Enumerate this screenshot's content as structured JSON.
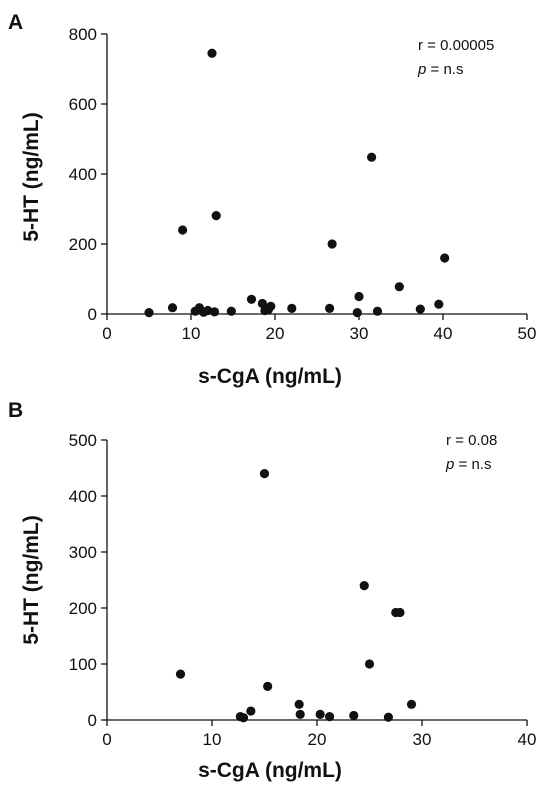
{
  "chart_data": [
    {
      "type": "scatter",
      "panel_label": "A",
      "xlabel": "s-CgA (ng/mL)",
      "ylabel": "5-HT (ng/mL)",
      "xlim": [
        0,
        50
      ],
      "ylim": [
        0,
        800
      ],
      "xticks": [
        0,
        10,
        20,
        30,
        40,
        50
      ],
      "yticks": [
        0,
        200,
        400,
        600,
        800
      ],
      "grid": false,
      "annotation": {
        "r_text": "r = 0.00005",
        "p_symbol": "p",
        "p_text": " = n.s"
      },
      "points": [
        {
          "x": 12.5,
          "y": 745
        },
        {
          "x": 31.5,
          "y": 448
        },
        {
          "x": 13.0,
          "y": 281
        },
        {
          "x": 9.0,
          "y": 240
        },
        {
          "x": 26.8,
          "y": 200
        },
        {
          "x": 40.2,
          "y": 160
        },
        {
          "x": 34.8,
          "y": 78
        },
        {
          "x": 30.0,
          "y": 50
        },
        {
          "x": 17.2,
          "y": 42
        },
        {
          "x": 39.5,
          "y": 28
        },
        {
          "x": 18.5,
          "y": 30
        },
        {
          "x": 19.5,
          "y": 22
        },
        {
          "x": 7.8,
          "y": 18
        },
        {
          "x": 11.0,
          "y": 18
        },
        {
          "x": 22.0,
          "y": 16
        },
        {
          "x": 26.5,
          "y": 16
        },
        {
          "x": 37.3,
          "y": 14
        },
        {
          "x": 19.2,
          "y": 12
        },
        {
          "x": 18.8,
          "y": 10
        },
        {
          "x": 12.0,
          "y": 10
        },
        {
          "x": 10.5,
          "y": 8
        },
        {
          "x": 14.8,
          "y": 8
        },
        {
          "x": 12.8,
          "y": 6
        },
        {
          "x": 32.2,
          "y": 8
        },
        {
          "x": 11.5,
          "y": 5
        },
        {
          "x": 5.0,
          "y": 4
        },
        {
          "x": 29.8,
          "y": 4
        }
      ]
    },
    {
      "type": "scatter",
      "panel_label": "B",
      "xlabel": "s-CgA (ng/mL)",
      "ylabel": "5-HT (ng/mL)",
      "xlim": [
        0,
        40
      ],
      "ylim": [
        0,
        500
      ],
      "xticks": [
        0,
        10,
        20,
        30,
        40
      ],
      "yticks": [
        0,
        100,
        200,
        300,
        400,
        500
      ],
      "grid": false,
      "annotation": {
        "r_text": "r = 0.08",
        "p_symbol": "p",
        "p_text": " = n.s"
      },
      "points": [
        {
          "x": 15.0,
          "y": 440
        },
        {
          "x": 24.5,
          "y": 240
        },
        {
          "x": 27.5,
          "y": 192
        },
        {
          "x": 27.9,
          "y": 192
        },
        {
          "x": 25.0,
          "y": 100
        },
        {
          "x": 7.0,
          "y": 82
        },
        {
          "x": 15.3,
          "y": 60
        },
        {
          "x": 18.3,
          "y": 28
        },
        {
          "x": 29.0,
          "y": 28
        },
        {
          "x": 13.7,
          "y": 16
        },
        {
          "x": 18.4,
          "y": 10
        },
        {
          "x": 20.3,
          "y": 10
        },
        {
          "x": 23.5,
          "y": 8
        },
        {
          "x": 21.2,
          "y": 6
        },
        {
          "x": 12.7,
          "y": 6
        },
        {
          "x": 13.0,
          "y": 4
        },
        {
          "x": 26.8,
          "y": 5
        }
      ]
    }
  ]
}
